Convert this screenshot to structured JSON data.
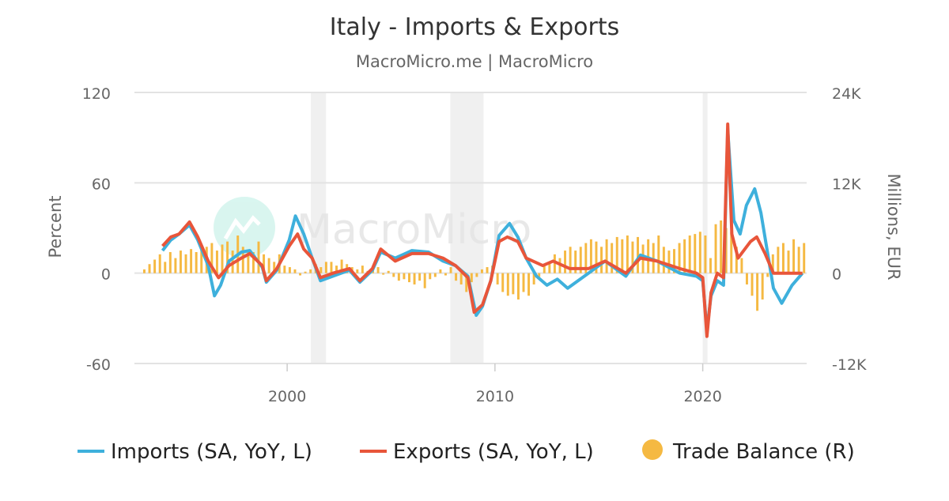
{
  "chart_data": {
    "type": "line",
    "title": "Italy - Imports & Exports",
    "subtitle": "MacroMicro.me | MacroMicro",
    "watermark": "MacroMicro",
    "ylabel_left": "Percent",
    "ylabel_right": "Millions, EUR",
    "ylim_left": [
      -60,
      120
    ],
    "ylim_right": [
      -12000,
      24000
    ],
    "yticks_left": [
      "120",
      "60",
      "0",
      "-60"
    ],
    "yticks_right": [
      "24K",
      "12K",
      "0",
      "-12K"
    ],
    "xlim": [
      1992.65,
      2025.0
    ],
    "xticks": [
      "2000",
      "2010",
      "2020"
    ],
    "grid": true,
    "legend_position": "bottom",
    "recessions": [
      [
        2001.14,
        2001.87
      ],
      [
        2007.85,
        2009.45
      ],
      [
        2020.0,
        2020.23
      ]
    ],
    "colors": {
      "imports": "#3eb0dc",
      "exports": "#e8553a",
      "trade_balance": "#f5b942",
      "recession": "#f0f0f0"
    },
    "series": [
      {
        "name": "Imports (SA, YoY, L)",
        "type": "line",
        "axis": "left",
        "x": [
          1994.0,
          1994.4,
          1994.8,
          1995.3,
          1995.7,
          1996.2,
          1996.5,
          1996.8,
          1997.2,
          1997.8,
          1998.2,
          1998.8,
          1999.0,
          1999.5,
          2000.1,
          2000.4,
          2000.8,
          2001.2,
          2001.6,
          2002.2,
          2003.0,
          2003.5,
          2004.1,
          2004.5,
          2005.2,
          2006.0,
          2006.8,
          2007.5,
          2008.1,
          2008.7,
          2009.1,
          2009.4,
          2009.8,
          2010.2,
          2010.7,
          2011.1,
          2011.5,
          2012.0,
          2012.5,
          2013.0,
          2013.5,
          2014.5,
          2015.3,
          2016.3,
          2017.0,
          2017.8,
          2018.9,
          2019.7,
          2020.0,
          2020.2,
          2020.4,
          2020.7,
          2021.0,
          2021.2,
          2021.5,
          2021.8,
          2022.1,
          2022.5,
          2022.8,
          2023.1,
          2023.4,
          2023.8,
          2024.3,
          2024.8
        ],
        "values": [
          15,
          22,
          26,
          32,
          22,
          5,
          -15,
          -8,
          8,
          14,
          15,
          4,
          -6,
          2,
          22,
          38,
          26,
          10,
          -5,
          -2,
          2,
          -6,
          2,
          14,
          10,
          15,
          14,
          8,
          5,
          -2,
          -28,
          -22,
          -5,
          25,
          33,
          24,
          10,
          -2,
          -8,
          -4,
          -10,
          0,
          8,
          -2,
          12,
          8,
          0,
          -2,
          -5,
          -38,
          -15,
          -5,
          -8,
          95,
          35,
          26,
          45,
          56,
          40,
          15,
          -10,
          -20,
          -8,
          0
        ]
      },
      {
        "name": "Exports (SA, YoY, L)",
        "type": "line",
        "axis": "left",
        "x": [
          1994.0,
          1994.4,
          1994.8,
          1995.3,
          1995.7,
          1996.2,
          1996.7,
          1997.2,
          1997.8,
          1998.2,
          1998.8,
          1999.0,
          1999.5,
          2000.1,
          2000.5,
          2000.8,
          2001.2,
          2001.6,
          2002.2,
          2003.0,
          2003.5,
          2004.1,
          2004.5,
          2005.2,
          2006.0,
          2006.8,
          2007.5,
          2008.1,
          2008.7,
          2009.0,
          2009.4,
          2009.8,
          2010.2,
          2010.6,
          2011.1,
          2011.5,
          2012.3,
          2012.8,
          2013.6,
          2014.5,
          2015.3,
          2016.3,
          2017.0,
          2017.8,
          2018.9,
          2019.7,
          2020.0,
          2020.2,
          2020.4,
          2020.7,
          2021.0,
          2021.2,
          2021.4,
          2021.7,
          2022.3,
          2022.6,
          2023.0,
          2023.4,
          2024.3,
          2024.8
        ],
        "values": [
          18,
          24,
          26,
          34,
          24,
          8,
          -3,
          5,
          10,
          13,
          5,
          -5,
          3,
          18,
          26,
          16,
          10,
          -3,
          0,
          3,
          -5,
          3,
          16,
          8,
          13,
          13,
          10,
          5,
          -3,
          -26,
          -21,
          -5,
          21,
          24,
          21,
          10,
          5,
          8,
          3,
          3,
          8,
          0,
          10,
          8,
          3,
          0,
          -3,
          -42,
          -13,
          0,
          -3,
          99,
          26,
          10,
          21,
          24,
          13,
          0,
          0,
          0
        ]
      },
      {
        "name": "Trade Balance (R)",
        "type": "bar",
        "axis": "right",
        "frequency": "quarterly",
        "start": 1993.0,
        "values": [
          500,
          1200,
          1800,
          2500,
          1500,
          2800,
          2000,
          3000,
          2500,
          3200,
          2800,
          3500,
          3500,
          4000,
          3000,
          3800,
          4200,
          3000,
          5000,
          3500,
          3000,
          2800,
          4200,
          2500,
          2000,
          1500,
          2500,
          1000,
          800,
          500,
          -300,
          200,
          500,
          1200,
          800,
          1500,
          1500,
          1000,
          1800,
          1200,
          800,
          500,
          1000,
          300,
          500,
          800,
          -200,
          300,
          -500,
          -1000,
          -800,
          -1200,
          -1500,
          -1000,
          -2000,
          -800,
          -500,
          500,
          -300,
          800,
          -1000,
          -1500,
          -2500,
          -1200,
          -500,
          500,
          800,
          1000,
          -1500,
          -2500,
          -3000,
          -2800,
          -3500,
          -2500,
          -3000,
          -1500,
          -500,
          1000,
          1500,
          2500,
          2000,
          3000,
          3500,
          3000,
          3500,
          4000,
          4500,
          4200,
          3500,
          4500,
          4000,
          4800,
          4500,
          5000,
          4200,
          4800,
          3800,
          4500,
          4000,
          5000,
          3500,
          3000,
          3200,
          4000,
          4500,
          5000,
          5200,
          5500,
          5000,
          2000,
          6500,
          7000,
          6000,
          5500,
          3500,
          2000,
          -1500,
          -3000,
          -5000,
          -3500,
          -500,
          2500,
          3500,
          4000,
          3000,
          4500,
          3500,
          4000
        ]
      }
    ]
  }
}
